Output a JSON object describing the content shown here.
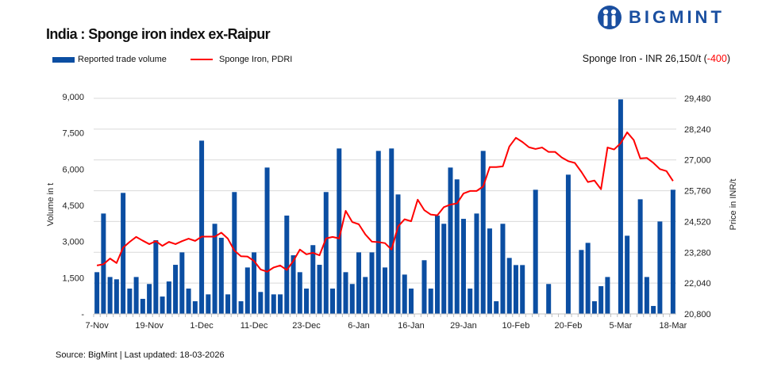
{
  "title": "India : Sponge iron index ex-Raipur",
  "brand": {
    "name": "BIGMINT",
    "color": "#1a4fa0"
  },
  "price_note": {
    "prefix": "Sponge Iron - INR 26,150/t (",
    "change": "-400",
    "suffix": ")",
    "change_color": "#ff0000"
  },
  "source": "Source: BigMint | Last updated: 18-03-2026",
  "chart_data": {
    "type": "bar+line",
    "title": "India : Sponge iron index ex-Raipur",
    "legend_position": "top-left",
    "grid": true,
    "categories": [
      "7-Nov",
      "",
      "",
      "",
      "",
      "",
      "",
      "",
      "19-Nov",
      "",
      "",
      "",
      "",
      "",
      "",
      "",
      "1-Dec",
      "",
      "",
      "",
      "",
      "",
      "",
      "",
      "11-Dec",
      "",
      "",
      "",
      "",
      "",
      "",
      "",
      "23-Dec",
      "",
      "",
      "",
      "",
      "",
      "",
      "",
      "6-Jan",
      "",
      "",
      "",
      "",
      "",
      "",
      "",
      "16-Jan",
      "",
      "",
      "",
      "",
      "",
      "",
      "",
      "29-Jan",
      "",
      "",
      "",
      "",
      "",
      "",
      "",
      "10-Feb",
      "",
      "",
      "",
      "",
      "",
      "",
      "",
      "20-Feb",
      "",
      "",
      "",
      "",
      "",
      "",
      "",
      "5-Mar",
      "",
      "",
      "",
      "",
      "",
      "",
      "",
      "18-Mar"
    ],
    "y_left": {
      "label": "Volume in t",
      "lim": [
        0,
        9000
      ],
      "ticks": [
        "-",
        "1,500",
        "3,000",
        "4,500",
        "6,000",
        "7,500",
        "9,000"
      ]
    },
    "y_right": {
      "label": "Price in INR/t",
      "lim": [
        20800,
        29480
      ],
      "ticks": [
        "20,800",
        "22,040",
        "23,280",
        "24,520",
        "25,760",
        "27,000",
        "28,240",
        "29,480"
      ]
    },
    "series": [
      {
        "name": "Reported trade volume",
        "type": "bar",
        "axis": "left",
        "color": "#0b4ea2",
        "values": [
          1730,
          4160,
          1530,
          1435,
          5015,
          1050,
          1530,
          625,
          1240,
          3055,
          720,
          1345,
          2035,
          2550,
          1050,
          525,
          7180,
          810,
          3735,
          3155,
          810,
          5050,
          525,
          1925,
          2550,
          910,
          6065,
          810,
          810,
          4075,
          2430,
          1730,
          1050,
          2850,
          2035,
          5050,
          1050,
          6855,
          1730,
          1240,
          2550,
          1530,
          2550,
          6755,
          1925,
          6855,
          4950,
          1630,
          1050,
          0,
          2225,
          1050,
          4075,
          3735,
          6065,
          5575,
          3940,
          1050,
          4160,
          6755,
          3540,
          525,
          3735,
          2320,
          2025,
          2025,
          0,
          5145,
          0,
          1240,
          0,
          0,
          5770,
          0,
          2650,
          2945,
          525,
          1150,
          1530,
          0,
          8890,
          3240,
          0,
          4750,
          1530,
          330,
          3830,
          0,
          5145
        ]
      },
      {
        "name": "Sponge Iron, PDRI",
        "type": "line",
        "axis": "right",
        "color": "#ff0000",
        "values": [
          22750,
          22800,
          23030,
          22850,
          23470,
          23700,
          23900,
          23750,
          23610,
          23730,
          23540,
          23700,
          23610,
          23730,
          23830,
          23740,
          23910,
          23910,
          23910,
          24070,
          23830,
          23350,
          23120,
          23110,
          22930,
          22590,
          22500,
          22670,
          22750,
          22570,
          22930,
          23390,
          23200,
          23260,
          23160,
          23840,
          23900,
          23840,
          24950,
          24500,
          24410,
          24000,
          23710,
          23690,
          23650,
          23390,
          24320,
          24610,
          24530,
          25400,
          24980,
          24800,
          24770,
          25100,
          25200,
          25250,
          25650,
          25750,
          25750,
          25930,
          26710,
          26710,
          26740,
          27540,
          27890,
          27720,
          27510,
          27440,
          27500,
          27320,
          27320,
          27100,
          26950,
          26880,
          26520,
          26110,
          26170,
          25820,
          27500,
          27420,
          27670,
          28110,
          27800,
          27060,
          27080,
          26880,
          26630,
          26550,
          26150
        ]
      }
    ]
  }
}
